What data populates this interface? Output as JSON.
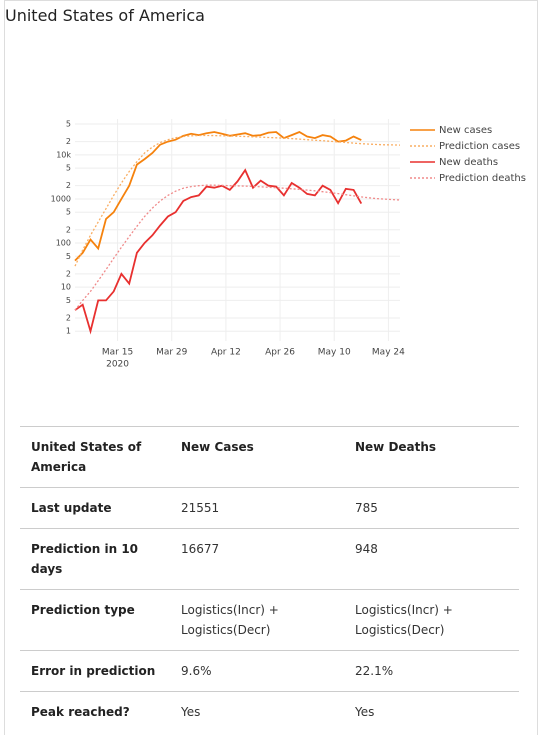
{
  "header": {
    "title": "United States of America"
  },
  "chart_data": {
    "type": "line",
    "log_y": true,
    "grid": true,
    "legend": "right",
    "x": [
      "2020-03-04",
      "2020-03-06",
      "2020-03-08",
      "2020-03-10",
      "2020-03-12",
      "2020-03-14",
      "2020-03-16",
      "2020-03-18",
      "2020-03-20",
      "2020-03-22",
      "2020-03-24",
      "2020-03-26",
      "2020-03-28",
      "2020-03-30",
      "2020-04-01",
      "2020-04-03",
      "2020-04-05",
      "2020-04-07",
      "2020-04-09",
      "2020-04-11",
      "2020-04-13",
      "2020-04-15",
      "2020-04-17",
      "2020-04-19",
      "2020-04-21",
      "2020-04-23",
      "2020-04-25",
      "2020-04-27",
      "2020-04-29",
      "2020-05-01",
      "2020-05-03",
      "2020-05-05",
      "2020-05-07",
      "2020-05-09",
      "2020-05-11",
      "2020-05-13",
      "2020-05-15",
      "2020-05-17",
      "2020-05-19",
      "2020-05-21",
      "2020-05-23",
      "2020-05-25",
      "2020-05-27"
    ],
    "series": [
      {
        "name": "New cases",
        "color": "#f5820d",
        "dash": false,
        "values": [
          40,
          60,
          120,
          75,
          350,
          500,
          1000,
          2000,
          6000,
          8000,
          11000,
          17000,
          20000,
          22000,
          27000,
          30000,
          28000,
          31000,
          33000,
          30000,
          27000,
          29000,
          31000,
          27000,
          28000,
          32000,
          33000,
          24000,
          28000,
          33000,
          26000,
          24000,
          28000,
          26000,
          20000,
          21000,
          26000,
          21551,
          null,
          null,
          null,
          null,
          null
        ]
      },
      {
        "name": "Prediction cases",
        "color": "#f9ad62",
        "dash": true,
        "values": [
          30,
          70,
          150,
          300,
          600,
          1200,
          2300,
          4200,
          7000,
          11000,
          15000,
          19000,
          22000,
          24500,
          26000,
          27000,
          27500,
          27500,
          27300,
          27000,
          26700,
          26400,
          26000,
          25600,
          25200,
          24800,
          24300,
          23800,
          23300,
          22700,
          22100,
          21500,
          20900,
          20300,
          19700,
          19100,
          18500,
          17900,
          17500,
          17200,
          16900,
          16800,
          16677
        ]
      },
      {
        "name": "New deaths",
        "color": "#e8302f",
        "dash": false,
        "values": [
          3,
          4,
          1,
          5,
          5,
          8,
          20,
          12,
          60,
          100,
          150,
          250,
          400,
          500,
          900,
          1100,
          1200,
          1900,
          1800,
          2000,
          1600,
          2500,
          4500,
          1800,
          2600,
          2000,
          1900,
          1200,
          2300,
          1800,
          1300,
          1200,
          2000,
          1600,
          800,
          1700,
          1600,
          785,
          null,
          null,
          null,
          null,
          null
        ]
      },
      {
        "name": "Prediction deaths",
        "color": "#f08a8a",
        "dash": true,
        "values": [
          3,
          5,
          8,
          14,
          25,
          45,
          80,
          140,
          240,
          400,
          620,
          900,
          1200,
          1500,
          1750,
          1900,
          2000,
          2050,
          2050,
          2030,
          2000,
          1980,
          1950,
          1920,
          1880,
          1840,
          1800,
          1750,
          1700,
          1650,
          1590,
          1530,
          1460,
          1390,
          1320,
          1250,
          1180,
          1110,
          1060,
          1020,
          990,
          965,
          948
        ]
      }
    ],
    "xlim": [
      "2020-03-04",
      "2020-05-27"
    ],
    "xticks": [
      {
        "value": "2020-03-15",
        "label": "Mar 15"
      },
      {
        "value": "2020-03-29",
        "label": "Mar 29"
      },
      {
        "value": "2020-04-12",
        "label": "Apr 12"
      },
      {
        "value": "2020-04-26",
        "label": "Apr 26"
      },
      {
        "value": "2020-05-10",
        "label": "May 10"
      },
      {
        "value": "2020-05-24",
        "label": "May 24"
      }
    ],
    "x_year": "2020",
    "ylim": [
      0.6,
      65000
    ],
    "yticks": [
      1,
      2,
      5,
      10,
      {
        "value": 20,
        "label": "2"
      },
      {
        "value": 50,
        "label": "5"
      },
      100,
      {
        "value": 200,
        "label": "2"
      },
      {
        "value": 500,
        "label": "5"
      },
      1000,
      {
        "value": 2000,
        "label": "2"
      },
      {
        "value": 5000,
        "label": "5"
      },
      {
        "value": 10000,
        "label": "10k"
      },
      {
        "value": 20000,
        "label": "2"
      },
      {
        "value": 50000,
        "label": "5"
      }
    ]
  },
  "table": {
    "header": [
      "United States of America",
      "New Cases",
      "New Deaths"
    ],
    "rows": [
      [
        "Last update",
        "21551",
        "785"
      ],
      [
        "Prediction in 10 days",
        "16677",
        "948"
      ],
      [
        "Prediction type",
        "Logistics(Incr) + Logistics(Decr)",
        "Logistics(Incr) + Logistics(Decr)"
      ],
      [
        "Error in prediction",
        "9.6%",
        "22.1%"
      ],
      [
        "Peak reached?",
        "Yes",
        "Yes"
      ]
    ]
  }
}
